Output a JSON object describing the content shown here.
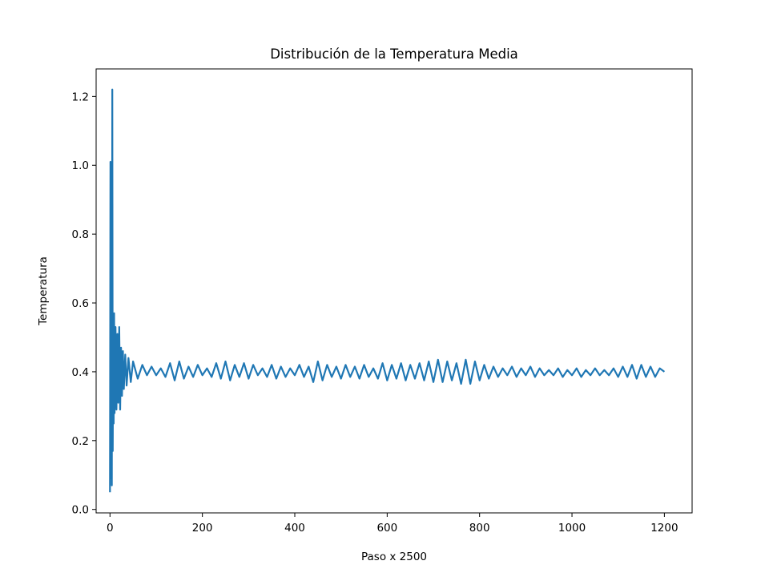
{
  "chart_data": {
    "type": "line",
    "title": "Distribución de la Temperatura Media",
    "xlabel": "Paso x 2500",
    "ylabel": "Temperatura",
    "xlim": [
      -30,
      1260
    ],
    "ylim": [
      -0.01,
      1.28
    ],
    "xticks": [
      0,
      200,
      400,
      600,
      800,
      1000,
      1200
    ],
    "xtick_labels": [
      "0",
      "200",
      "400",
      "600",
      "800",
      "1000",
      "1200"
    ],
    "yticks": [
      0.0,
      0.2,
      0.4,
      0.6,
      0.8,
      1.0,
      1.2
    ],
    "ytick_labels": [
      "0.0",
      "0.2",
      "0.4",
      "0.6",
      "0.8",
      "1.0",
      "1.2"
    ],
    "grid": false,
    "color": "#1f77b4",
    "series": [
      {
        "x": [
          0,
          1,
          2,
          3,
          4,
          5,
          6,
          7,
          8,
          9,
          10,
          12,
          14,
          16,
          18,
          20,
          22,
          24,
          26,
          28,
          30,
          33,
          36,
          40,
          45,
          50,
          60,
          70,
          80,
          90,
          100,
          110,
          120,
          130,
          140,
          150,
          160,
          170,
          180,
          190,
          200,
          210,
          220,
          230,
          240,
          250,
          260,
          270,
          280,
          290,
          300,
          310,
          320,
          330,
          340,
          350,
          360,
          370,
          380,
          390,
          400,
          410,
          420,
          430,
          440,
          450,
          460,
          470,
          480,
          490,
          500,
          510,
          520,
          530,
          540,
          550,
          560,
          570,
          580,
          590,
          600,
          610,
          620,
          630,
          640,
          650,
          660,
          670,
          680,
          690,
          700,
          710,
          720,
          730,
          740,
          750,
          760,
          770,
          780,
          790,
          800,
          810,
          820,
          830,
          840,
          850,
          860,
          870,
          880,
          890,
          900,
          910,
          920,
          930,
          940,
          950,
          960,
          970,
          980,
          990,
          1000,
          1010,
          1020,
          1030,
          1040,
          1050,
          1060,
          1070,
          1080,
          1090,
          1100,
          1110,
          1120,
          1130,
          1140,
          1150,
          1160,
          1170,
          1180,
          1190,
          1200
        ],
        "y": [
          0.05,
          1.01,
          0.09,
          0.78,
          0.07,
          1.22,
          0.17,
          0.54,
          0.25,
          0.57,
          0.28,
          0.53,
          0.29,
          0.51,
          0.31,
          0.53,
          0.29,
          0.47,
          0.33,
          0.46,
          0.35,
          0.45,
          0.36,
          0.44,
          0.37,
          0.43,
          0.38,
          0.42,
          0.39,
          0.415,
          0.39,
          0.41,
          0.385,
          0.425,
          0.375,
          0.43,
          0.38,
          0.415,
          0.385,
          0.42,
          0.39,
          0.41,
          0.385,
          0.425,
          0.38,
          0.43,
          0.375,
          0.42,
          0.385,
          0.425,
          0.38,
          0.42,
          0.39,
          0.41,
          0.385,
          0.42,
          0.38,
          0.415,
          0.385,
          0.41,
          0.39,
          0.42,
          0.385,
          0.415,
          0.37,
          0.43,
          0.375,
          0.42,
          0.385,
          0.415,
          0.38,
          0.42,
          0.385,
          0.415,
          0.38,
          0.42,
          0.385,
          0.41,
          0.38,
          0.425,
          0.375,
          0.42,
          0.38,
          0.425,
          0.375,
          0.42,
          0.38,
          0.425,
          0.375,
          0.43,
          0.37,
          0.435,
          0.37,
          0.43,
          0.375,
          0.425,
          0.365,
          0.435,
          0.365,
          0.43,
          0.375,
          0.42,
          0.38,
          0.415,
          0.385,
          0.41,
          0.39,
          0.415,
          0.385,
          0.41,
          0.39,
          0.415,
          0.385,
          0.41,
          0.39,
          0.405,
          0.39,
          0.41,
          0.385,
          0.405,
          0.39,
          0.41,
          0.385,
          0.405,
          0.39,
          0.41,
          0.39,
          0.405,
          0.39,
          0.41,
          0.385,
          0.415,
          0.385,
          0.42,
          0.38,
          0.42,
          0.385,
          0.415,
          0.385,
          0.41,
          0.4
        ]
      }
    ]
  }
}
